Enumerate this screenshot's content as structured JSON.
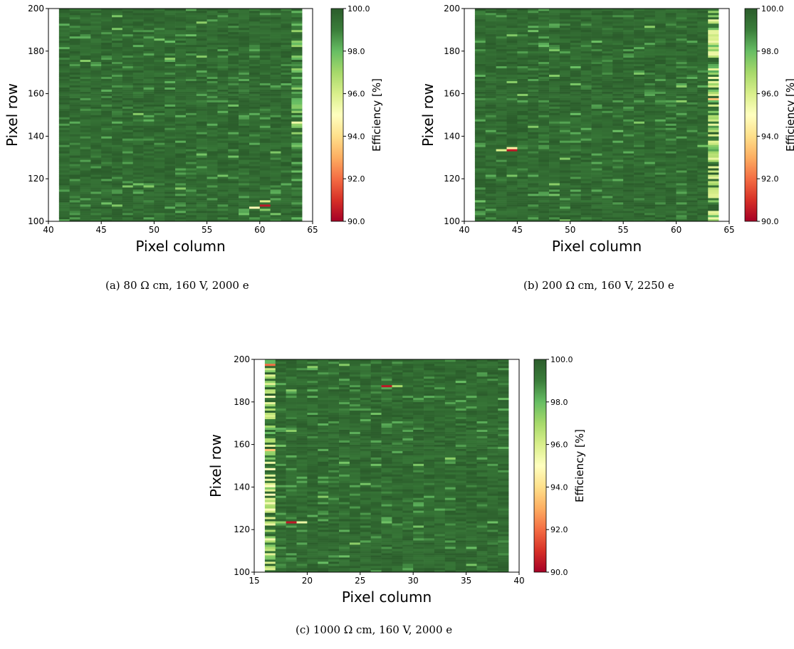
{
  "colorbar": {
    "label": "Efficiency [%]",
    "ticks": [
      "100.0",
      "98.0",
      "96.0",
      "94.0",
      "92.0",
      "90.0"
    ],
    "range": [
      90,
      100
    ],
    "colormap": [
      "#a50026",
      "#d73027",
      "#f46d43",
      "#fdae61",
      "#fee08b",
      "#ffffbf",
      "#d9ef8b",
      "#a6d96a",
      "#66bd63",
      "#3a7d3a",
      "#2b5c2b"
    ]
  },
  "chart_data": [
    {
      "type": "heatmap",
      "caption": "(a)  80 Ω cm, 160 V, 2000 e",
      "xlabel": "Pixel column",
      "ylabel": "Pixel row",
      "xlim": [
        40,
        65
      ],
      "ylim": [
        100,
        200
      ],
      "xticks": [
        "40",
        "45",
        "50",
        "55",
        "60",
        "65"
      ],
      "yticks": [
        "100",
        "120",
        "140",
        "160",
        "180",
        "200"
      ],
      "columns": [
        41,
        63
      ],
      "rows": [
        100,
        199
      ],
      "base_efficiency": 99.6,
      "edge_column": {
        "column": 63,
        "efficiency": 98.8
      },
      "low_pixels": [
        {
          "col": 60,
          "row": 107,
          "eff": 90.5
        },
        {
          "col": 59,
          "row": 106,
          "eff": 94.8
        },
        {
          "col": 60,
          "row": 109,
          "eff": 96.0
        },
        {
          "col": 60,
          "row": 105,
          "eff": 97.5
        },
        {
          "col": 63,
          "row": 146,
          "eff": 95.5
        }
      ]
    },
    {
      "type": "heatmap",
      "caption": "(b)  200 Ω cm, 160 V, 2250 e",
      "xlabel": "Pixel column",
      "ylabel": "Pixel row",
      "xlim": [
        40,
        65
      ],
      "ylim": [
        100,
        200
      ],
      "xticks": [
        "40",
        "45",
        "50",
        "55",
        "60",
        "65"
      ],
      "yticks": [
        "100",
        "120",
        "140",
        "160",
        "180",
        "200"
      ],
      "columns": [
        41,
        63
      ],
      "rows": [
        100,
        199
      ],
      "base_efficiency": 99.6,
      "edge_column": {
        "column": 63,
        "efficiency": 97.0
      },
      "low_pixels": [
        {
          "col": 44,
          "row": 133,
          "eff": 90.5
        },
        {
          "col": 44,
          "row": 134,
          "eff": 94.5
        },
        {
          "col": 43,
          "row": 133,
          "eff": 96.0
        },
        {
          "col": 63,
          "row": 157,
          "eff": 93.5
        }
      ]
    },
    {
      "type": "heatmap",
      "caption": "(c)  1000 Ω cm, 160 V, 2000 e",
      "xlabel": "Pixel column",
      "ylabel": "Pixel row",
      "xlim": [
        15,
        40
      ],
      "ylim": [
        100,
        200
      ],
      "xticks": [
        "15",
        "20",
        "25",
        "30",
        "35",
        "40"
      ],
      "yticks": [
        "100",
        "120",
        "140",
        "160",
        "180",
        "200"
      ],
      "columns": [
        16,
        38
      ],
      "rows": [
        100,
        199
      ],
      "base_efficiency": 99.6,
      "edge_column": {
        "column": 16,
        "efficiency": 96.5
      },
      "low_pixels": [
        {
          "col": 18,
          "row": 123,
          "eff": 90.5
        },
        {
          "col": 19,
          "row": 123,
          "eff": 95.5
        },
        {
          "col": 27,
          "row": 187,
          "eff": 90.5
        },
        {
          "col": 28,
          "row": 187,
          "eff": 97.0
        },
        {
          "col": 16,
          "row": 197,
          "eff": 92.0
        },
        {
          "col": 16,
          "row": 157,
          "eff": 93.5
        }
      ]
    }
  ]
}
